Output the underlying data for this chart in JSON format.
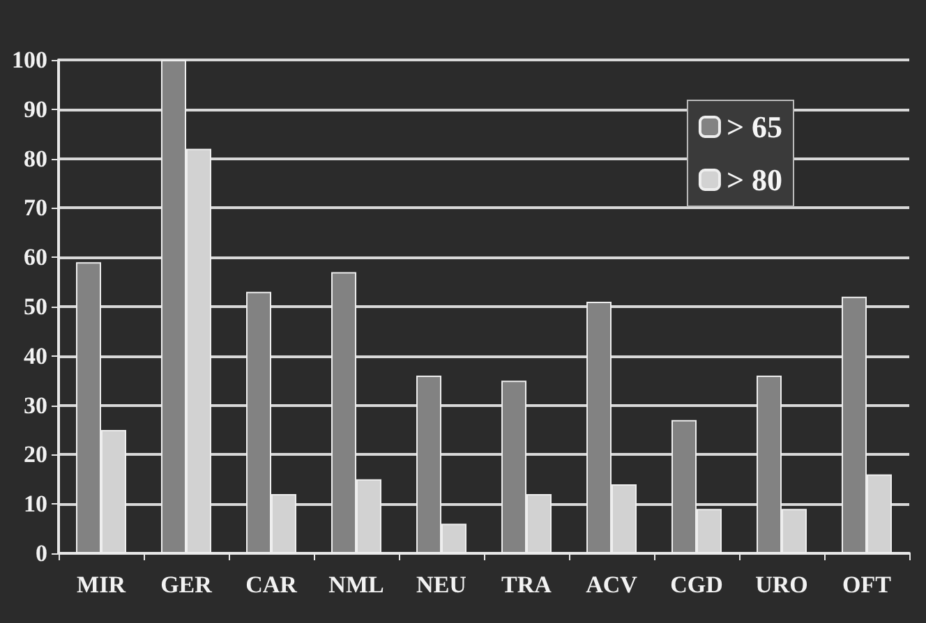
{
  "chart_data": {
    "type": "bar",
    "categories": [
      "MIR",
      "GER",
      "CAR",
      "NML",
      "NEU",
      "TRA",
      "ACV",
      "CGD",
      "URO",
      "OFT"
    ],
    "series": [
      {
        "name": "> 65",
        "color": "#828282",
        "values": [
          59,
          100,
          53,
          57,
          36,
          35,
          51,
          27,
          36,
          52
        ]
      },
      {
        "name": "> 80",
        "color": "#d2d2d2",
        "values": [
          25,
          82,
          12,
          15,
          6,
          12,
          14,
          9,
          9,
          16
        ]
      }
    ],
    "ylim": [
      0,
      100
    ],
    "yticks": [
      0,
      10,
      20,
      30,
      40,
      50,
      60,
      70,
      80,
      90,
      100
    ],
    "grid": "y",
    "legend": "top right"
  }
}
